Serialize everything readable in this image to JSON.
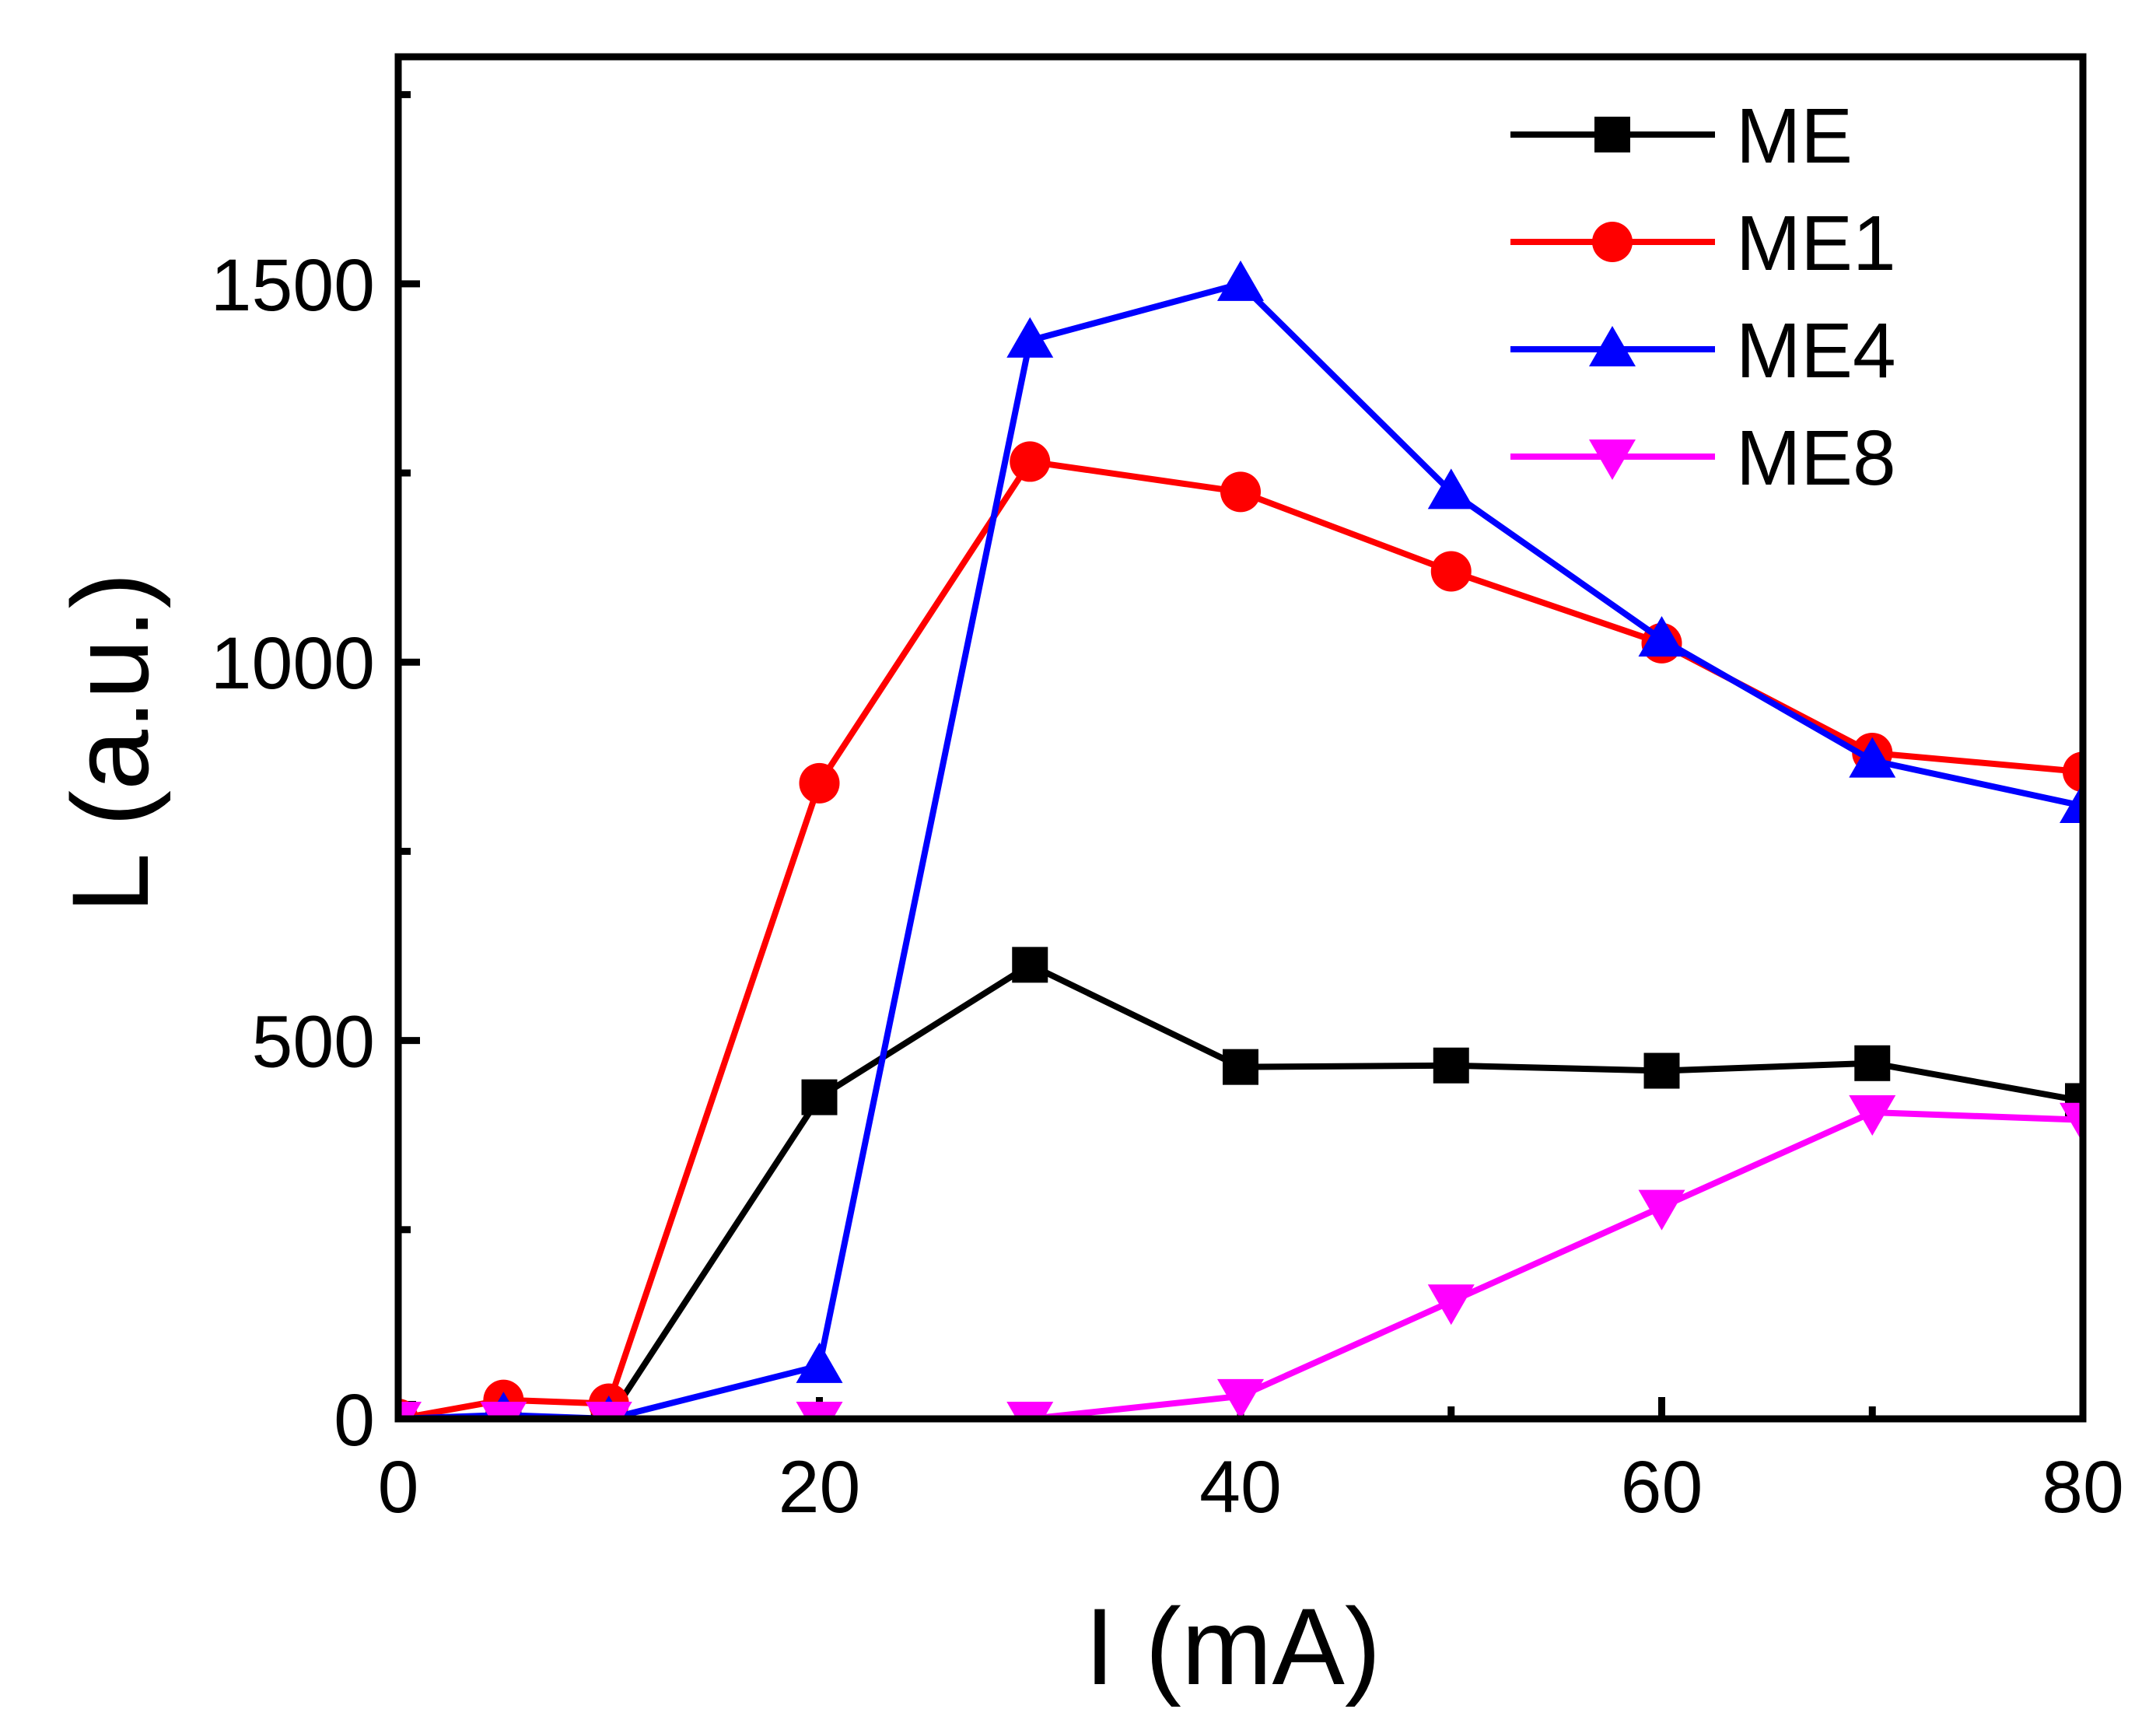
{
  "chart_data": {
    "type": "line",
    "title": "",
    "xlabel": "I (mA)",
    "ylabel": "L (a.u.)",
    "xlim": [
      0,
      80
    ],
    "ylim": [
      0,
      1800
    ],
    "xticks": [
      0,
      20,
      40,
      60,
      80
    ],
    "xminor": [
      10,
      30,
      50,
      70
    ],
    "yticks": [
      0,
      500,
      1000,
      1500
    ],
    "yminor": [
      250,
      750,
      1250,
      1750
    ],
    "legend_position": "top-right",
    "series": [
      {
        "name": "ME",
        "color": "#000000",
        "marker": "square",
        "x": [
          0,
          5,
          10,
          20,
          30,
          40,
          50,
          60,
          70,
          80
        ],
        "y": [
          0,
          0,
          0,
          425,
          600,
          465,
          467,
          460,
          470,
          420
        ]
      },
      {
        "name": "ME1",
        "color": "#ff0000",
        "marker": "circle",
        "x": [
          0,
          5,
          10,
          20,
          30,
          40,
          50,
          60,
          70,
          80
        ],
        "y": [
          0,
          25,
          20,
          840,
          1265,
          1225,
          1120,
          1025,
          880,
          855
        ]
      },
      {
        "name": "ME4",
        "color": "#0000ff",
        "marker": "triangle-up",
        "x": [
          0,
          5,
          10,
          20,
          30,
          40,
          50,
          60,
          70,
          80
        ],
        "y": [
          0,
          5,
          0,
          70,
          1425,
          1500,
          1225,
          1030,
          870,
          810
        ]
      },
      {
        "name": "ME8",
        "color": "#ff00ff",
        "marker": "triangle-down",
        "x": [
          0,
          5,
          10,
          20,
          30,
          40,
          50,
          60,
          70,
          80
        ],
        "y": [
          0,
          0,
          0,
          0,
          0,
          30,
          155,
          280,
          405,
          395
        ]
      }
    ]
  }
}
